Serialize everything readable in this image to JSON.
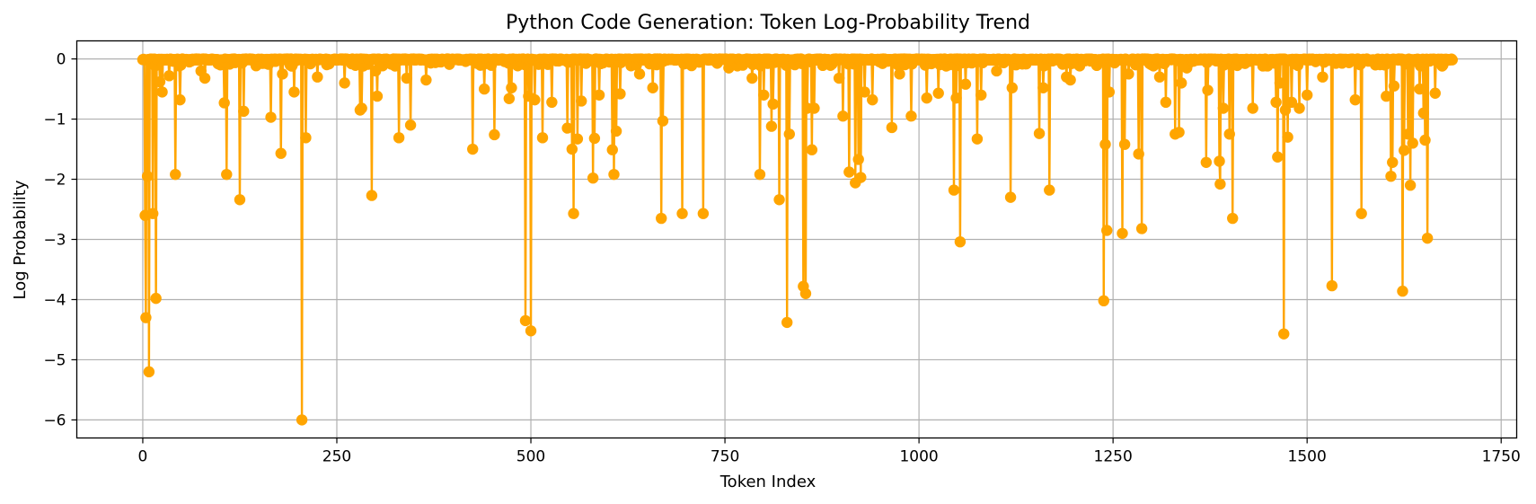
{
  "chart_data": {
    "type": "line",
    "title": "Python Code Generation: Token Log-Probability Trend",
    "xlabel": "Token Index",
    "ylabel": "Log Probability",
    "xlim": [
      -85,
      1770
    ],
    "ylim": [
      -6.3,
      0.3
    ],
    "xticks": [
      0,
      250,
      500,
      750,
      1000,
      1250,
      1500,
      1750
    ],
    "yticks": [
      0,
      -1,
      -2,
      -3,
      -4,
      -5,
      -6
    ],
    "x_tick_labels": [
      "0",
      "250",
      "500",
      "750",
      "1000",
      "1250",
      "1500",
      "1750"
    ],
    "y_tick_labels": [
      "0",
      "−1",
      "−2",
      "−3",
      "−4",
      "−5",
      "−6"
    ],
    "grid": true,
    "color": "#FFA500",
    "marker": "circle",
    "n_points": 1688,
    "series": [
      {
        "low_points": [
          [
            3,
            -2.6
          ],
          [
            4,
            -4.3
          ],
          [
            6,
            -1.95
          ],
          [
            8,
            -5.2
          ],
          [
            13,
            -2.57
          ],
          [
            17,
            -3.98
          ],
          [
            22,
            -0.38
          ],
          [
            25,
            -0.55
          ],
          [
            34,
            -0.28
          ],
          [
            42,
            -1.92
          ],
          [
            48,
            -0.68
          ],
          [
            60,
            -0.05
          ],
          [
            75,
            -0.2
          ],
          [
            80,
            -0.32
          ],
          [
            100,
            -0.1
          ],
          [
            105,
            -0.73
          ],
          [
            108,
            -1.92
          ],
          [
            125,
            -2.34
          ],
          [
            130,
            -0.87
          ],
          [
            145,
            -0.07
          ],
          [
            165,
            -0.97
          ],
          [
            178,
            -1.57
          ],
          [
            180,
            -0.25
          ],
          [
            195,
            -0.55
          ],
          [
            205,
            -6.0
          ],
          [
            210,
            -1.31
          ],
          [
            225,
            -0.3
          ],
          [
            260,
            -0.4
          ],
          [
            280,
            -0.85
          ],
          [
            282,
            -0.82
          ],
          [
            295,
            -2.27
          ],
          [
            300,
            -0.2
          ],
          [
            302,
            -0.62
          ],
          [
            330,
            -1.31
          ],
          [
            340,
            -0.32
          ],
          [
            345,
            -1.1
          ],
          [
            365,
            -0.35
          ],
          [
            425,
            -1.5
          ],
          [
            440,
            -0.5
          ],
          [
            453,
            -1.26
          ],
          [
            472,
            -0.66
          ],
          [
            475,
            -0.48
          ],
          [
            493,
            -4.35
          ],
          [
            497,
            -0.62
          ],
          [
            500,
            -4.52
          ],
          [
            505,
            -0.68
          ],
          [
            515,
            -1.31
          ],
          [
            527,
            -0.72
          ],
          [
            547,
            -1.15
          ],
          [
            553,
            -1.5
          ],
          [
            555,
            -2.57
          ],
          [
            560,
            -1.33
          ],
          [
            565,
            -0.7
          ],
          [
            580,
            -1.98
          ],
          [
            582,
            -1.32
          ],
          [
            588,
            -0.6
          ],
          [
            605,
            -1.51
          ],
          [
            607,
            -1.92
          ],
          [
            610,
            -1.2
          ],
          [
            615,
            -0.58
          ],
          [
            640,
            -0.25
          ],
          [
            657,
            -0.48
          ],
          [
            668,
            -2.65
          ],
          [
            670,
            -1.03
          ],
          [
            695,
            -2.57
          ],
          [
            722,
            -2.57
          ],
          [
            755,
            -0.15
          ],
          [
            785,
            -0.32
          ],
          [
            795,
            -1.92
          ],
          [
            800,
            -0.6
          ],
          [
            810,
            -1.12
          ],
          [
            812,
            -0.75
          ],
          [
            820,
            -2.34
          ],
          [
            830,
            -4.38
          ],
          [
            833,
            -1.25
          ],
          [
            851,
            -3.78
          ],
          [
            854,
            -3.9
          ],
          [
            856,
            -0.82
          ],
          [
            862,
            -1.51
          ],
          [
            865,
            -0.82
          ],
          [
            897,
            -0.32
          ],
          [
            902,
            -0.95
          ],
          [
            910,
            -1.88
          ],
          [
            918,
            -2.06
          ],
          [
            922,
            -1.67
          ],
          [
            925,
            -1.97
          ],
          [
            930,
            -0.55
          ],
          [
            940,
            -0.68
          ],
          [
            965,
            -1.14
          ],
          [
            975,
            -0.25
          ],
          [
            990,
            -0.95
          ],
          [
            1010,
            -0.65
          ],
          [
            1025,
            -0.57
          ],
          [
            1045,
            -2.18
          ],
          [
            1048,
            -0.65
          ],
          [
            1053,
            -3.04
          ],
          [
            1060,
            -0.42
          ],
          [
            1075,
            -1.33
          ],
          [
            1080,
            -0.6
          ],
          [
            1100,
            -0.2
          ],
          [
            1118,
            -2.3
          ],
          [
            1120,
            -0.48
          ],
          [
            1155,
            -1.24
          ],
          [
            1160,
            -0.48
          ],
          [
            1168,
            -2.18
          ],
          [
            1190,
            -0.3
          ],
          [
            1195,
            -0.35
          ],
          [
            1238,
            -4.02
          ],
          [
            1240,
            -1.42
          ],
          [
            1242,
            -2.85
          ],
          [
            1245,
            -0.55
          ],
          [
            1262,
            -2.9
          ],
          [
            1265,
            -1.42
          ],
          [
            1270,
            -0.25
          ],
          [
            1283,
            -1.58
          ],
          [
            1287,
            -2.82
          ],
          [
            1310,
            -0.3
          ],
          [
            1318,
            -0.72
          ],
          [
            1330,
            -1.25
          ],
          [
            1335,
            -1.22
          ],
          [
            1338,
            -0.4
          ],
          [
            1345,
            -0.15
          ],
          [
            1370,
            -1.72
          ],
          [
            1372,
            -0.52
          ],
          [
            1387,
            -1.7
          ],
          [
            1388,
            -2.08
          ],
          [
            1392,
            -0.82
          ],
          [
            1400,
            -1.25
          ],
          [
            1404,
            -2.65
          ],
          [
            1430,
            -0.82
          ],
          [
            1460,
            -0.72
          ],
          [
            1462,
            -1.63
          ],
          [
            1465,
            -0.4
          ],
          [
            1470,
            -4.57
          ],
          [
            1472,
            -0.85
          ],
          [
            1475,
            -1.3
          ],
          [
            1480,
            -0.72
          ],
          [
            1490,
            -0.82
          ],
          [
            1500,
            -0.6
          ],
          [
            1520,
            -0.3
          ],
          [
            1532,
            -3.77
          ],
          [
            1562,
            -0.68
          ],
          [
            1570,
            -2.57
          ],
          [
            1602,
            -0.62
          ],
          [
            1608,
            -1.95
          ],
          [
            1610,
            -1.72
          ],
          [
            1612,
            -0.45
          ],
          [
            1623,
            -3.86
          ],
          [
            1625,
            -1.52
          ],
          [
            1630,
            -1.25
          ],
          [
            1633,
            -2.1
          ],
          [
            1636,
            -1.4
          ],
          [
            1645,
            -0.5
          ],
          [
            1650,
            -0.9
          ],
          [
            1652,
            -1.35
          ],
          [
            1655,
            -2.98
          ],
          [
            1665,
            -0.57
          ],
          [
            1675,
            -0.1
          ]
        ]
      }
    ]
  }
}
